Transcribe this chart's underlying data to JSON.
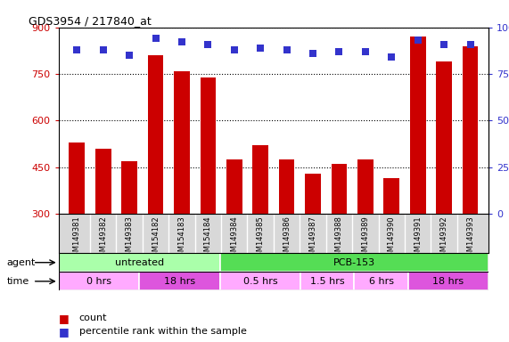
{
  "title": "GDS3954 / 217840_at",
  "samples": [
    "GSM149381",
    "GSM149382",
    "GSM149383",
    "GSM154182",
    "GSM154183",
    "GSM154184",
    "GSM149384",
    "GSM149385",
    "GSM149386",
    "GSM149387",
    "GSM149388",
    "GSM149389",
    "GSM149390",
    "GSM149391",
    "GSM149392",
    "GSM149393"
  ],
  "counts": [
    530,
    510,
    470,
    810,
    760,
    740,
    475,
    520,
    475,
    430,
    460,
    475,
    415,
    870,
    790,
    840
  ],
  "percentile_ranks": [
    88,
    88,
    85,
    94,
    92,
    91,
    88,
    89,
    88,
    86,
    87,
    87,
    84,
    93,
    91,
    91
  ],
  "ylim_left": [
    300,
    900
  ],
  "ylim_right": [
    0,
    100
  ],
  "yticks_left": [
    300,
    450,
    600,
    750,
    900
  ],
  "yticks_right": [
    0,
    25,
    50,
    75,
    100
  ],
  "bar_color": "#cc0000",
  "dot_color": "#3333cc",
  "label_bg_color": "#d8d8d8",
  "agent_groups": [
    {
      "label": "untreated",
      "start": 0,
      "end": 6,
      "color": "#aaffaa"
    },
    {
      "label": "PCB-153",
      "start": 6,
      "end": 16,
      "color": "#55dd55"
    }
  ],
  "time_groups": [
    {
      "label": "0 hrs",
      "start": 0,
      "end": 3,
      "color": "#ffaaff"
    },
    {
      "label": "18 hrs",
      "start": 3,
      "end": 6,
      "color": "#dd55dd"
    },
    {
      "label": "0.5 hrs",
      "start": 6,
      "end": 9,
      "color": "#ffaaff"
    },
    {
      "label": "1.5 hrs",
      "start": 9,
      "end": 11,
      "color": "#ffaaff"
    },
    {
      "label": "6 hrs",
      "start": 11,
      "end": 13,
      "color": "#ffaaff"
    },
    {
      "label": "18 hrs",
      "start": 13,
      "end": 16,
      "color": "#dd55dd"
    }
  ],
  "legend_count_label": "count",
  "legend_pct_label": "percentile rank within the sample",
  "agent_label": "agent",
  "time_label": "time"
}
